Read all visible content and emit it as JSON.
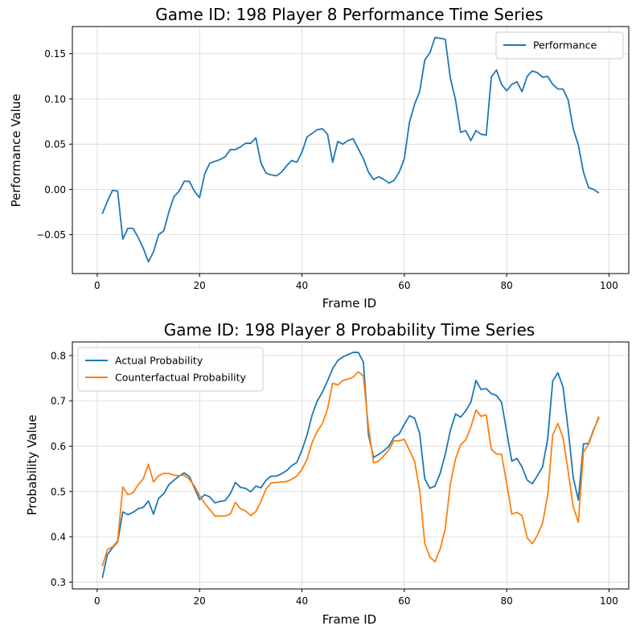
{
  "chart_data": [
    {
      "type": "line",
      "title": "Game ID: 198 Player 8 Performance Time Series",
      "xlabel": "Frame ID",
      "ylabel": "Performance Value",
      "xlim": [
        -4.85,
        103.85
      ],
      "ylim": [
        -0.093,
        0.18
      ],
      "xticks": [
        0,
        20,
        40,
        60,
        80,
        100
      ],
      "yticks": [
        -0.05,
        0.0,
        0.05,
        0.1,
        0.15
      ],
      "ytick_labels": [
        "−0.05",
        "0.00",
        "0.05",
        "0.10",
        "0.15"
      ],
      "grid": true,
      "legend_position": "upper right",
      "series": [
        {
          "name": "Performance",
          "color": "#1f77b4",
          "x": [
            1,
            2,
            3,
            4,
            5,
            6,
            7,
            8,
            9,
            10,
            11,
            12,
            13,
            14,
            15,
            16,
            17,
            18,
            19,
            20,
            21,
            22,
            23,
            24,
            25,
            26,
            27,
            28,
            29,
            30,
            31,
            32,
            33,
            34,
            35,
            36,
            37,
            38,
            39,
            40,
            41,
            42,
            43,
            44,
            45,
            46,
            47,
            48,
            49,
            50,
            51,
            52,
            53,
            54,
            55,
            56,
            57,
            58,
            59,
            60,
            61,
            62,
            63,
            64,
            65,
            66,
            67,
            68,
            69,
            70,
            71,
            72,
            73,
            74,
            75,
            76,
            77,
            78,
            79,
            80,
            81,
            82,
            83,
            84,
            85,
            86,
            87,
            88,
            89,
            90,
            91,
            92,
            93,
            94,
            95,
            96,
            97,
            98
          ],
          "values": [
            -0.027,
            -0.013,
            -0.001,
            -0.002,
            -0.055,
            -0.043,
            -0.043,
            -0.053,
            -0.065,
            -0.08,
            -0.069,
            -0.05,
            -0.046,
            -0.025,
            -0.008,
            -0.002,
            0.009,
            0.009,
            -0.002,
            -0.009,
            0.017,
            0.029,
            0.031,
            0.033,
            0.036,
            0.044,
            0.044,
            0.047,
            0.051,
            0.051,
            0.057,
            0.029,
            0.018,
            0.016,
            0.015,
            0.019,
            0.026,
            0.032,
            0.03,
            0.041,
            0.058,
            0.062,
            0.066,
            0.067,
            0.061,
            0.03,
            0.053,
            0.05,
            0.054,
            0.056,
            0.045,
            0.034,
            0.019,
            0.011,
            0.014,
            0.011,
            0.007,
            0.01,
            0.019,
            0.034,
            0.074,
            0.094,
            0.108,
            0.143,
            0.151,
            0.168,
            0.167,
            0.166,
            0.123,
            0.099,
            0.063,
            0.065,
            0.054,
            0.065,
            0.061,
            0.06,
            0.124,
            0.132,
            0.116,
            0.109,
            0.116,
            0.119,
            0.108,
            0.125,
            0.131,
            0.129,
            0.124,
            0.125,
            0.116,
            0.111,
            0.111,
            0.099,
            0.067,
            0.049,
            0.019,
            0.002,
            0.0,
            -0.004
          ]
        }
      ]
    },
    {
      "type": "line",
      "title": "Game ID: 198 Player 8 Probability Time Series",
      "xlabel": "Frame ID",
      "ylabel": "Probability Value",
      "xlim": [
        -4.85,
        103.85
      ],
      "ylim": [
        0.285,
        0.83
      ],
      "xticks": [
        0,
        20,
        40,
        60,
        80,
        100
      ],
      "yticks": [
        0.3,
        0.4,
        0.5,
        0.6,
        0.7,
        0.8
      ],
      "ytick_labels": [
        "0.3",
        "0.4",
        "0.5",
        "0.6",
        "0.7",
        "0.8"
      ],
      "grid": true,
      "legend_position": "upper left",
      "series": [
        {
          "name": "Actual Probability",
          "color": "#1f77b4",
          "x": [
            1,
            2,
            3,
            4,
            5,
            6,
            7,
            8,
            9,
            10,
            11,
            12,
            13,
            14,
            15,
            16,
            17,
            18,
            19,
            20,
            21,
            22,
            23,
            24,
            25,
            26,
            27,
            28,
            29,
            30,
            31,
            32,
            33,
            34,
            35,
            36,
            37,
            38,
            39,
            40,
            41,
            42,
            43,
            44,
            45,
            46,
            47,
            48,
            49,
            50,
            51,
            52,
            53,
            54,
            55,
            56,
            57,
            58,
            59,
            60,
            61,
            62,
            63,
            64,
            65,
            66,
            67,
            68,
            69,
            70,
            71,
            72,
            73,
            74,
            75,
            76,
            77,
            78,
            79,
            80,
            81,
            82,
            83,
            84,
            85,
            86,
            87,
            88,
            89,
            90,
            91,
            92,
            93,
            94,
            95,
            96,
            97,
            98
          ],
          "values": [
            0.309,
            0.361,
            0.376,
            0.389,
            0.455,
            0.449,
            0.454,
            0.462,
            0.465,
            0.479,
            0.45,
            0.485,
            0.495,
            0.515,
            0.525,
            0.534,
            0.541,
            0.533,
            0.508,
            0.482,
            0.493,
            0.488,
            0.475,
            0.478,
            0.48,
            0.495,
            0.52,
            0.509,
            0.507,
            0.499,
            0.512,
            0.508,
            0.525,
            0.534,
            0.534,
            0.539,
            0.546,
            0.557,
            0.564,
            0.591,
            0.625,
            0.669,
            0.7,
            0.719,
            0.744,
            0.771,
            0.789,
            0.797,
            0.802,
            0.807,
            0.807,
            0.786,
            0.625,
            0.575,
            0.582,
            0.59,
            0.6,
            0.62,
            0.627,
            0.648,
            0.667,
            0.662,
            0.628,
            0.528,
            0.507,
            0.512,
            0.54,
            0.582,
            0.635,
            0.671,
            0.664,
            0.678,
            0.697,
            0.745,
            0.725,
            0.727,
            0.716,
            0.712,
            0.697,
            0.632,
            0.567,
            0.573,
            0.554,
            0.525,
            0.517,
            0.535,
            0.554,
            0.615,
            0.744,
            0.762,
            0.731,
            0.638,
            0.531,
            0.481,
            0.605,
            0.606,
            0.637,
            0.663
          ]
        },
        {
          "name": "Counterfactual Probability",
          "color": "#ff7f0e",
          "x": [
            1,
            2,
            3,
            4,
            5,
            6,
            7,
            8,
            9,
            10,
            11,
            12,
            13,
            14,
            15,
            16,
            17,
            18,
            19,
            20,
            21,
            22,
            23,
            24,
            25,
            26,
            27,
            28,
            29,
            30,
            31,
            32,
            33,
            34,
            35,
            36,
            37,
            38,
            39,
            40,
            41,
            42,
            43,
            44,
            45,
            46,
            47,
            48,
            49,
            50,
            51,
            52,
            53,
            54,
            55,
            56,
            57,
            58,
            59,
            60,
            61,
            62,
            63,
            64,
            65,
            66,
            67,
            68,
            69,
            70,
            71,
            72,
            73,
            74,
            75,
            76,
            77,
            78,
            79,
            80,
            81,
            82,
            83,
            84,
            85,
            86,
            87,
            88,
            89,
            90,
            91,
            92,
            93,
            94,
            95,
            96,
            97,
            98
          ],
          "values": [
            0.335,
            0.372,
            0.378,
            0.391,
            0.51,
            0.493,
            0.497,
            0.515,
            0.528,
            0.56,
            0.521,
            0.535,
            0.54,
            0.54,
            0.536,
            0.535,
            0.536,
            0.527,
            0.512,
            0.491,
            0.474,
            0.46,
            0.446,
            0.446,
            0.446,
            0.45,
            0.476,
            0.462,
            0.457,
            0.447,
            0.456,
            0.478,
            0.506,
            0.519,
            0.52,
            0.521,
            0.522,
            0.527,
            0.534,
            0.549,
            0.571,
            0.608,
            0.633,
            0.65,
            0.682,
            0.739,
            0.735,
            0.745,
            0.748,
            0.752,
            0.764,
            0.755,
            0.642,
            0.563,
            0.567,
            0.579,
            0.592,
            0.612,
            0.612,
            0.615,
            0.591,
            0.567,
            0.503,
            0.385,
            0.355,
            0.345,
            0.373,
            0.418,
            0.517,
            0.572,
            0.603,
            0.614,
            0.642,
            0.68,
            0.666,
            0.669,
            0.593,
            0.583,
            0.582,
            0.518,
            0.45,
            0.454,
            0.447,
            0.398,
            0.385,
            0.403,
            0.43,
            0.491,
            0.625,
            0.65,
            0.619,
            0.545,
            0.466,
            0.432,
            0.587,
            0.604,
            0.635,
            0.666
          ]
        }
      ]
    }
  ]
}
